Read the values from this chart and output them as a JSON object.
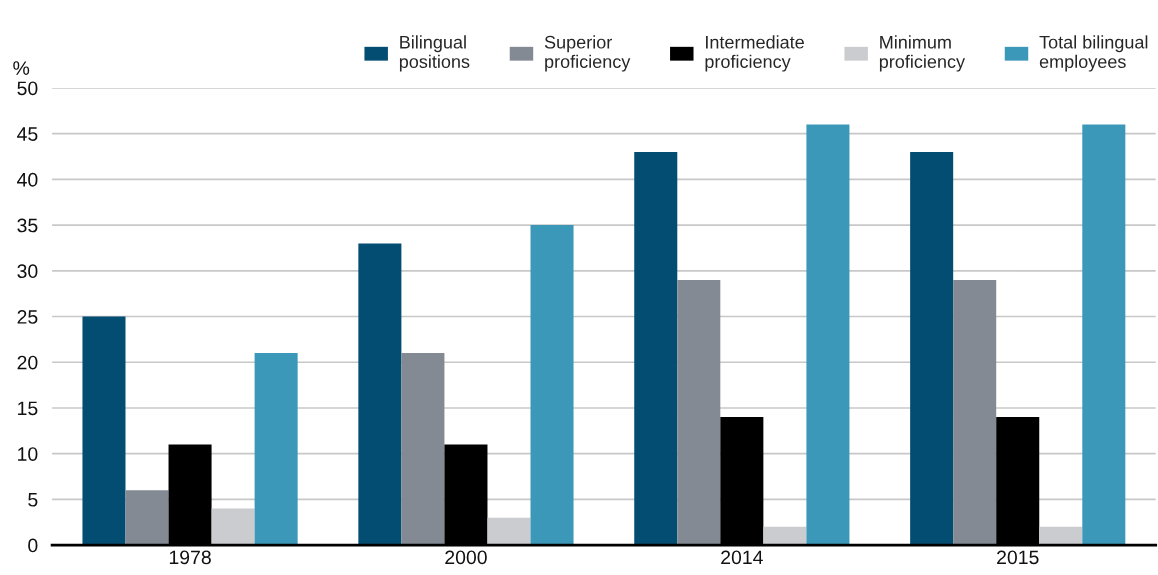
{
  "chart_data": {
    "type": "bar",
    "ylabel": "%",
    "categories": [
      "1978",
      "2000",
      "2014",
      "2015"
    ],
    "series": [
      {
        "name": "Bilingual\npositions",
        "color": "#034d72",
        "values": [
          25,
          33,
          43,
          43
        ]
      },
      {
        "name": "Superior\nproficiency",
        "color": "#838a93",
        "values": [
          6,
          21,
          29,
          29
        ]
      },
      {
        "name": "Intermediate\nproficiency",
        "color": "#000000",
        "values": [
          11,
          11,
          14,
          14
        ]
      },
      {
        "name": "Minimum\nproficiency",
        "color": "#cbcccf",
        "values": [
          4,
          3,
          2,
          2
        ]
      },
      {
        "name": "Total bilingual\nemployees",
        "color": "#3b98b8",
        "values": [
          21,
          35,
          46,
          46
        ]
      }
    ],
    "ylim": [
      0,
      50
    ],
    "yticks": [
      0,
      5,
      10,
      15,
      20,
      25,
      30,
      35,
      40,
      45,
      50
    ],
    "grid": "y",
    "legend": "top"
  }
}
